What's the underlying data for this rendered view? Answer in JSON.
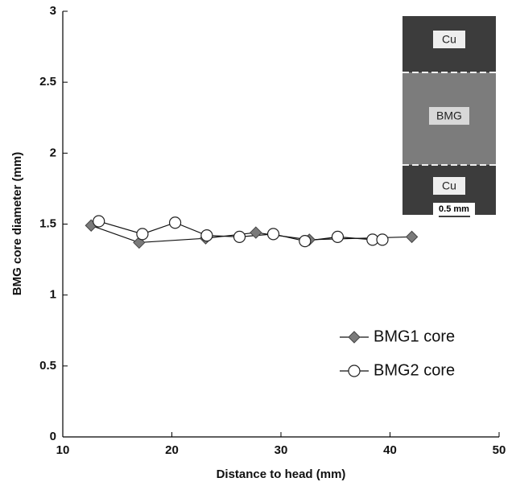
{
  "chart_data": {
    "type": "line",
    "xlabel": "Distance to head (mm)",
    "ylabel": "BMG core diameter (mm)",
    "xlim": [
      10,
      50
    ],
    "xticks": [
      10,
      20,
      30,
      40,
      50
    ],
    "ylim": [
      0,
      3
    ],
    "yticks": [
      0,
      0.5,
      1,
      1.5,
      2,
      2.5,
      3
    ],
    "legend": "lower right",
    "series": [
      {
        "name": "BMG1 core",
        "color": "#7a7a7a",
        "marker": "diamond",
        "x": [
          12.6,
          17.0,
          23.1,
          27.7,
          32.6,
          42.0
        ],
        "values": [
          1.49,
          1.37,
          1.4,
          1.44,
          1.39,
          1.41
        ]
      },
      {
        "name": "BMG2 core",
        "color": "#ffffff",
        "marker": "circle",
        "x": [
          13.3,
          17.3,
          20.3,
          23.2,
          26.2,
          29.3,
          32.2,
          35.2,
          38.4,
          39.3
        ],
        "values": [
          1.52,
          1.43,
          1.51,
          1.42,
          1.41,
          1.43,
          1.38,
          1.41,
          1.39,
          1.39
        ]
      }
    ],
    "annotations": {
      "inset_labels": [
        "Cu",
        "BMG",
        "Cu"
      ],
      "scale_bar": "0.5 mm"
    }
  }
}
